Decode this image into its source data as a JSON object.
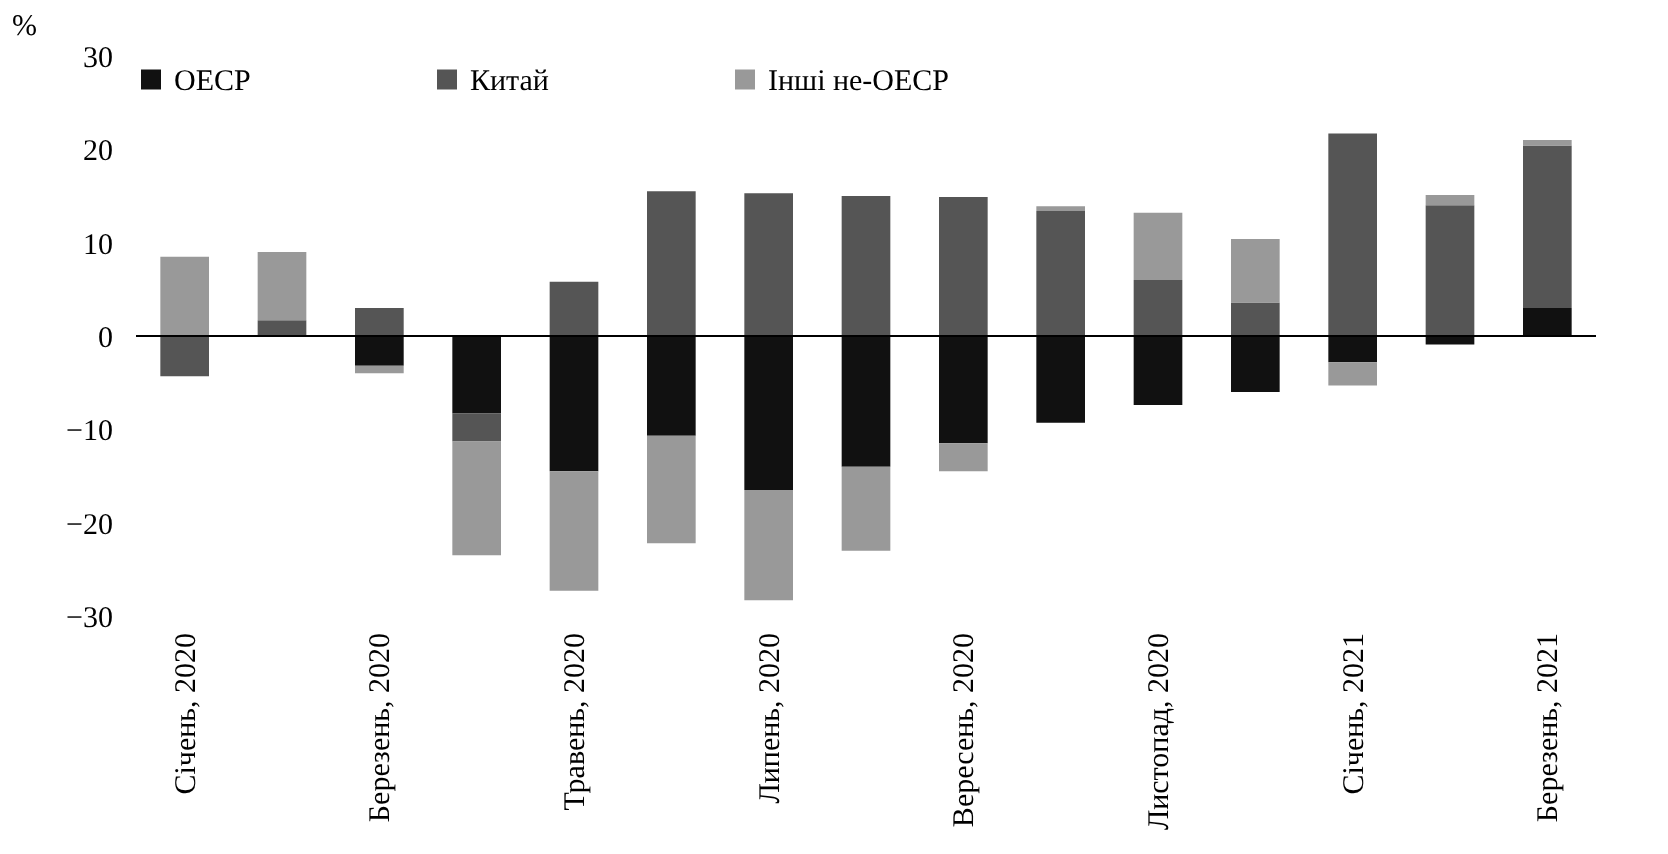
{
  "chart_data": {
    "type": "bar",
    "stacked": true,
    "ylabel": "%",
    "categories": [
      "Січень, 2020",
      null,
      "Березень, 2020",
      null,
      "Травень, 2020",
      null,
      "Липень, 2020",
      null,
      "Вересень, 2020",
      null,
      "Листопад, 2020",
      null,
      "Січень, 2021",
      null,
      "Березень, 2021"
    ],
    "series": [
      {
        "name": "OECP",
        "color": "#111111",
        "values": [
          0,
          0,
          -3.2,
          -8.3,
          -14.5,
          -10.7,
          -16.5,
          -14,
          -11.5,
          -9.3,
          -7.4,
          -6,
          -2.8,
          -0.9,
          3
        ]
      },
      {
        "name": "Китай",
        "color": "#555555",
        "values": [
          -4.3,
          1.7,
          3,
          -3,
          5.8,
          15.5,
          15.3,
          15,
          14.9,
          13.4,
          6,
          3.6,
          21.7,
          14,
          17.4
        ]
      },
      {
        "name": "Інші не-OECP",
        "color": "#999999",
        "values": [
          8.5,
          7.3,
          -0.8,
          -12.2,
          -12.8,
          -11.5,
          -11.8,
          -9,
          -3,
          0.5,
          7.2,
          6.8,
          -2.5,
          1.1,
          0.6
        ]
      }
    ],
    "ylim": [
      -30,
      30
    ],
    "yticks": [
      -30,
      -20,
      -10,
      0,
      10,
      20,
      30
    ],
    "grid": false,
    "legend": "top",
    "ref_lines": [
      {
        "axis": "y",
        "value": 0,
        "color": "#000000"
      }
    ]
  }
}
